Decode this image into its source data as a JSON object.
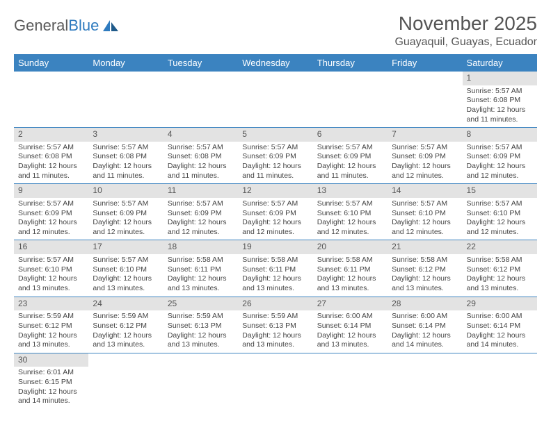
{
  "logo": {
    "text1": "General",
    "text2": "Blue"
  },
  "title": "November 2025",
  "subtitle": "Guayaquil, Guayas, Ecuador",
  "colors": {
    "header_bg": "#3b83c0",
    "header_text": "#ffffff",
    "daynum_bg": "#e3e3e3",
    "row_border": "#3b83c0",
    "body_text": "#444444",
    "logo_gray": "#5a5a5a",
    "logo_blue": "#2f7bbf"
  },
  "day_headers": [
    "Sunday",
    "Monday",
    "Tuesday",
    "Wednesday",
    "Thursday",
    "Friday",
    "Saturday"
  ],
  "weeks": [
    [
      null,
      null,
      null,
      null,
      null,
      null,
      {
        "n": "1",
        "sunrise": "Sunrise: 5:57 AM",
        "sunset": "Sunset: 6:08 PM",
        "daylight": "Daylight: 12 hours and 11 minutes."
      }
    ],
    [
      {
        "n": "2",
        "sunrise": "Sunrise: 5:57 AM",
        "sunset": "Sunset: 6:08 PM",
        "daylight": "Daylight: 12 hours and 11 minutes."
      },
      {
        "n": "3",
        "sunrise": "Sunrise: 5:57 AM",
        "sunset": "Sunset: 6:08 PM",
        "daylight": "Daylight: 12 hours and 11 minutes."
      },
      {
        "n": "4",
        "sunrise": "Sunrise: 5:57 AM",
        "sunset": "Sunset: 6:08 PM",
        "daylight": "Daylight: 12 hours and 11 minutes."
      },
      {
        "n": "5",
        "sunrise": "Sunrise: 5:57 AM",
        "sunset": "Sunset: 6:09 PM",
        "daylight": "Daylight: 12 hours and 11 minutes."
      },
      {
        "n": "6",
        "sunrise": "Sunrise: 5:57 AM",
        "sunset": "Sunset: 6:09 PM",
        "daylight": "Daylight: 12 hours and 11 minutes."
      },
      {
        "n": "7",
        "sunrise": "Sunrise: 5:57 AM",
        "sunset": "Sunset: 6:09 PM",
        "daylight": "Daylight: 12 hours and 12 minutes."
      },
      {
        "n": "8",
        "sunrise": "Sunrise: 5:57 AM",
        "sunset": "Sunset: 6:09 PM",
        "daylight": "Daylight: 12 hours and 12 minutes."
      }
    ],
    [
      {
        "n": "9",
        "sunrise": "Sunrise: 5:57 AM",
        "sunset": "Sunset: 6:09 PM",
        "daylight": "Daylight: 12 hours and 12 minutes."
      },
      {
        "n": "10",
        "sunrise": "Sunrise: 5:57 AM",
        "sunset": "Sunset: 6:09 PM",
        "daylight": "Daylight: 12 hours and 12 minutes."
      },
      {
        "n": "11",
        "sunrise": "Sunrise: 5:57 AM",
        "sunset": "Sunset: 6:09 PM",
        "daylight": "Daylight: 12 hours and 12 minutes."
      },
      {
        "n": "12",
        "sunrise": "Sunrise: 5:57 AM",
        "sunset": "Sunset: 6:09 PM",
        "daylight": "Daylight: 12 hours and 12 minutes."
      },
      {
        "n": "13",
        "sunrise": "Sunrise: 5:57 AM",
        "sunset": "Sunset: 6:10 PM",
        "daylight": "Daylight: 12 hours and 12 minutes."
      },
      {
        "n": "14",
        "sunrise": "Sunrise: 5:57 AM",
        "sunset": "Sunset: 6:10 PM",
        "daylight": "Daylight: 12 hours and 12 minutes."
      },
      {
        "n": "15",
        "sunrise": "Sunrise: 5:57 AM",
        "sunset": "Sunset: 6:10 PM",
        "daylight": "Daylight: 12 hours and 12 minutes."
      }
    ],
    [
      {
        "n": "16",
        "sunrise": "Sunrise: 5:57 AM",
        "sunset": "Sunset: 6:10 PM",
        "daylight": "Daylight: 12 hours and 13 minutes."
      },
      {
        "n": "17",
        "sunrise": "Sunrise: 5:57 AM",
        "sunset": "Sunset: 6:10 PM",
        "daylight": "Daylight: 12 hours and 13 minutes."
      },
      {
        "n": "18",
        "sunrise": "Sunrise: 5:58 AM",
        "sunset": "Sunset: 6:11 PM",
        "daylight": "Daylight: 12 hours and 13 minutes."
      },
      {
        "n": "19",
        "sunrise": "Sunrise: 5:58 AM",
        "sunset": "Sunset: 6:11 PM",
        "daylight": "Daylight: 12 hours and 13 minutes."
      },
      {
        "n": "20",
        "sunrise": "Sunrise: 5:58 AM",
        "sunset": "Sunset: 6:11 PM",
        "daylight": "Daylight: 12 hours and 13 minutes."
      },
      {
        "n": "21",
        "sunrise": "Sunrise: 5:58 AM",
        "sunset": "Sunset: 6:12 PM",
        "daylight": "Daylight: 12 hours and 13 minutes."
      },
      {
        "n": "22",
        "sunrise": "Sunrise: 5:58 AM",
        "sunset": "Sunset: 6:12 PM",
        "daylight": "Daylight: 12 hours and 13 minutes."
      }
    ],
    [
      {
        "n": "23",
        "sunrise": "Sunrise: 5:59 AM",
        "sunset": "Sunset: 6:12 PM",
        "daylight": "Daylight: 12 hours and 13 minutes."
      },
      {
        "n": "24",
        "sunrise": "Sunrise: 5:59 AM",
        "sunset": "Sunset: 6:12 PM",
        "daylight": "Daylight: 12 hours and 13 minutes."
      },
      {
        "n": "25",
        "sunrise": "Sunrise: 5:59 AM",
        "sunset": "Sunset: 6:13 PM",
        "daylight": "Daylight: 12 hours and 13 minutes."
      },
      {
        "n": "26",
        "sunrise": "Sunrise: 5:59 AM",
        "sunset": "Sunset: 6:13 PM",
        "daylight": "Daylight: 12 hours and 13 minutes."
      },
      {
        "n": "27",
        "sunrise": "Sunrise: 6:00 AM",
        "sunset": "Sunset: 6:14 PM",
        "daylight": "Daylight: 12 hours and 13 minutes."
      },
      {
        "n": "28",
        "sunrise": "Sunrise: 6:00 AM",
        "sunset": "Sunset: 6:14 PM",
        "daylight": "Daylight: 12 hours and 14 minutes."
      },
      {
        "n": "29",
        "sunrise": "Sunrise: 6:00 AM",
        "sunset": "Sunset: 6:14 PM",
        "daylight": "Daylight: 12 hours and 14 minutes."
      }
    ],
    [
      {
        "n": "30",
        "sunrise": "Sunrise: 6:01 AM",
        "sunset": "Sunset: 6:15 PM",
        "daylight": "Daylight: 12 hours and 14 minutes."
      },
      null,
      null,
      null,
      null,
      null,
      null
    ]
  ]
}
